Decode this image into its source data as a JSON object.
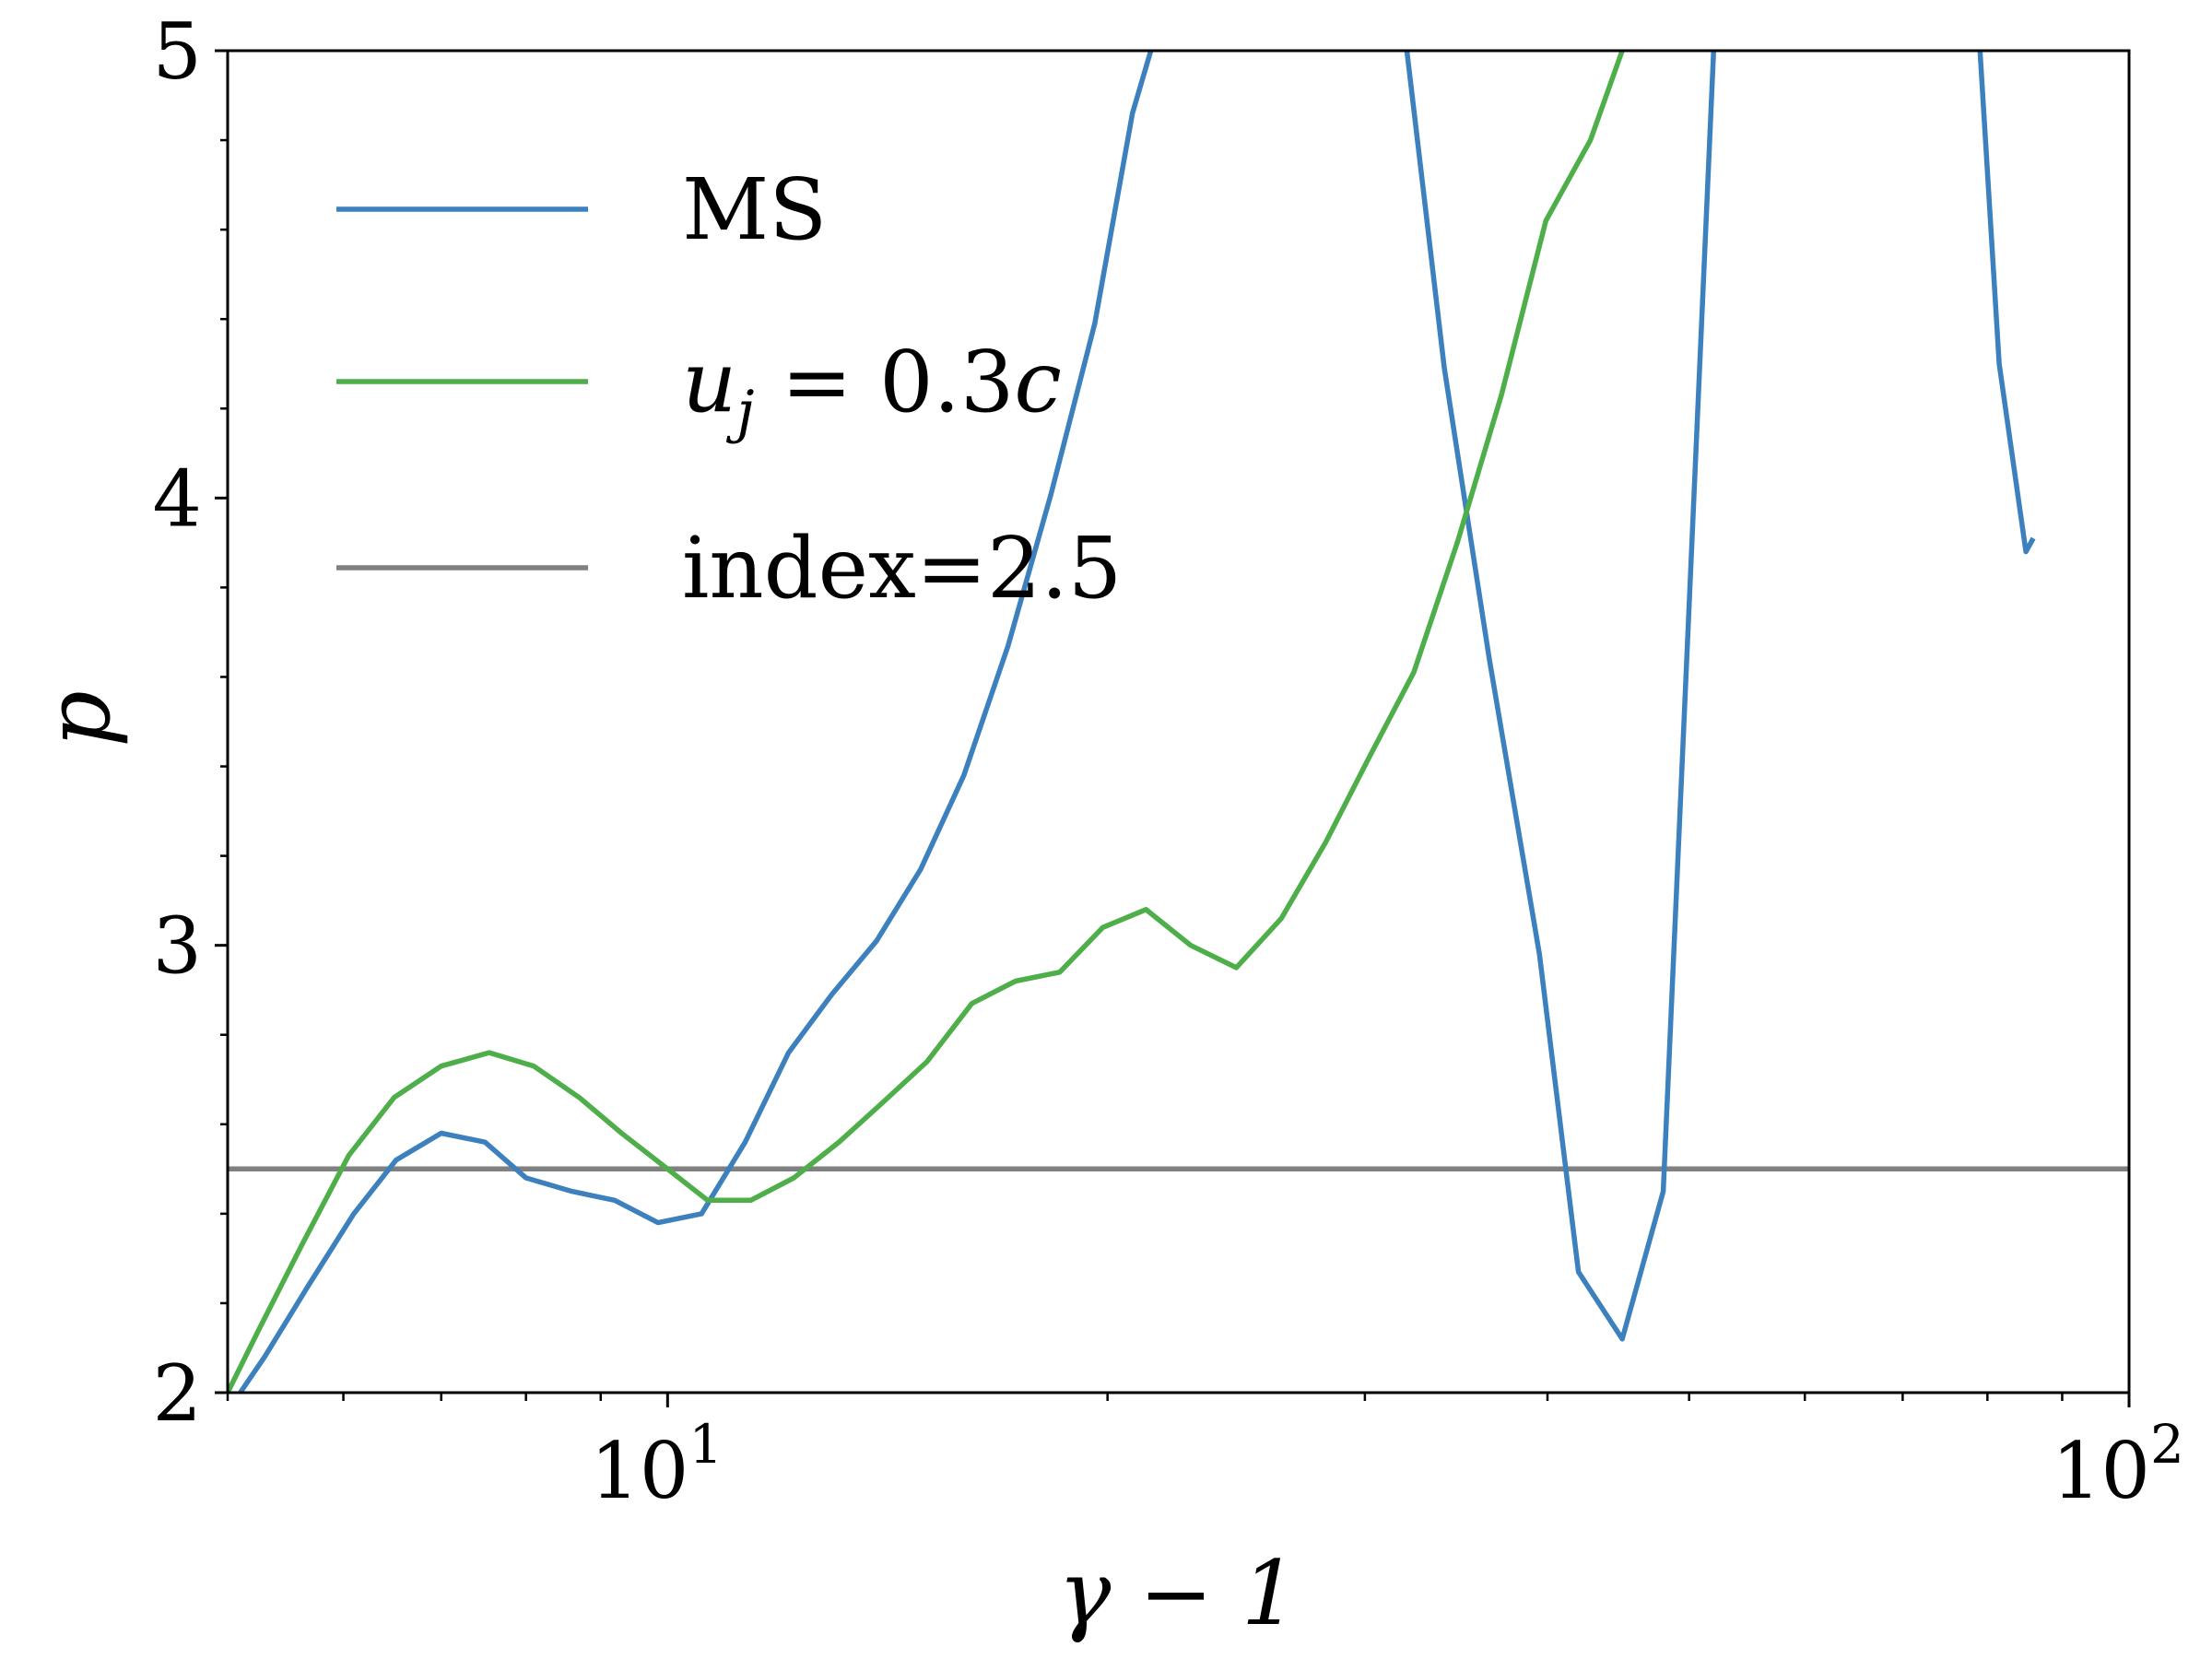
{
  "chart_data": {
    "type": "line",
    "xscale": "log",
    "xlabel": "γ − 1",
    "ylabel": "p",
    "xlim": [
      5.0,
      100
    ],
    "ylim": [
      2,
      5
    ],
    "xticks": [
      {
        "value": 10,
        "base": "10",
        "exp": "1"
      },
      {
        "value": 100,
        "base": "10",
        "exp": "2"
      }
    ],
    "yticks": [
      2,
      3,
      4,
      5
    ],
    "grid": false,
    "legend_placement": "upper-left",
    "series": [
      {
        "name": "MS",
        "color": "#3c80bd",
        "points": [
          [
            5.1,
            2.0
          ],
          [
            5.3,
            2.08
          ],
          [
            5.68,
            2.24
          ],
          [
            6.1,
            2.4
          ],
          [
            6.52,
            2.52
          ],
          [
            7.0,
            2.58
          ],
          [
            7.5,
            2.56
          ],
          [
            8.0,
            2.48
          ],
          [
            8.6,
            2.45
          ],
          [
            9.2,
            2.43
          ],
          [
            9.85,
            2.38
          ],
          [
            10.55,
            2.4
          ],
          [
            11.3,
            2.56
          ],
          [
            12.1,
            2.76
          ],
          [
            12.95,
            2.89
          ],
          [
            13.9,
            3.01
          ],
          [
            14.9,
            3.17
          ],
          [
            15.95,
            3.38
          ],
          [
            17.1,
            3.67
          ],
          [
            18.3,
            4.01
          ],
          [
            19.6,
            4.39
          ],
          [
            20.8,
            4.86
          ],
          [
            21.5,
            5.02
          ],
          [
            32.0,
            5.02
          ],
          [
            34.0,
            4.29
          ],
          [
            36.5,
            3.64
          ],
          [
            39.5,
            2.98
          ],
          [
            42.0,
            2.27
          ],
          [
            45.0,
            2.12
          ],
          [
            48.0,
            2.45
          ],
          [
            52.0,
            5.02
          ],
          [
            79.0,
            5.02
          ],
          [
            81.5,
            4.3
          ],
          [
            85.0,
            3.88
          ],
          [
            86.0,
            3.91
          ]
        ]
      },
      {
        "name": "u_j = 0.3c",
        "label_parts": [
          "u",
          "j",
          " = 0.3",
          "c"
        ],
        "color": "#4eae4a",
        "points": [
          [
            5.0,
            2.0
          ],
          [
            5.25,
            2.14
          ],
          [
            5.62,
            2.33
          ],
          [
            6.05,
            2.53
          ],
          [
            6.5,
            2.66
          ],
          [
            7.0,
            2.73
          ],
          [
            7.55,
            2.76
          ],
          [
            8.1,
            2.73
          ],
          [
            8.7,
            2.66
          ],
          [
            9.3,
            2.58
          ],
          [
            10.0,
            2.5
          ],
          [
            10.65,
            2.43
          ],
          [
            11.4,
            2.43
          ],
          [
            12.2,
            2.48
          ],
          [
            13.1,
            2.56
          ],
          [
            14.05,
            2.65
          ],
          [
            15.05,
            2.74
          ],
          [
            16.15,
            2.87
          ],
          [
            17.3,
            2.92
          ],
          [
            18.55,
            2.94
          ],
          [
            19.85,
            3.04
          ],
          [
            21.25,
            3.08
          ],
          [
            22.8,
            3.0
          ],
          [
            24.5,
            2.95
          ],
          [
            26.3,
            3.06
          ],
          [
            28.2,
            3.23
          ],
          [
            30.2,
            3.42
          ],
          [
            32.4,
            3.61
          ],
          [
            34.7,
            3.9
          ],
          [
            37.2,
            4.23
          ],
          [
            39.9,
            4.62
          ],
          [
            42.8,
            4.8
          ],
          [
            45.0,
            5.0
          ]
        ]
      },
      {
        "name": "index=2.5",
        "color": "#808080",
        "points": [
          [
            5.0,
            2.5
          ],
          [
            100,
            2.5
          ]
        ]
      }
    ]
  }
}
